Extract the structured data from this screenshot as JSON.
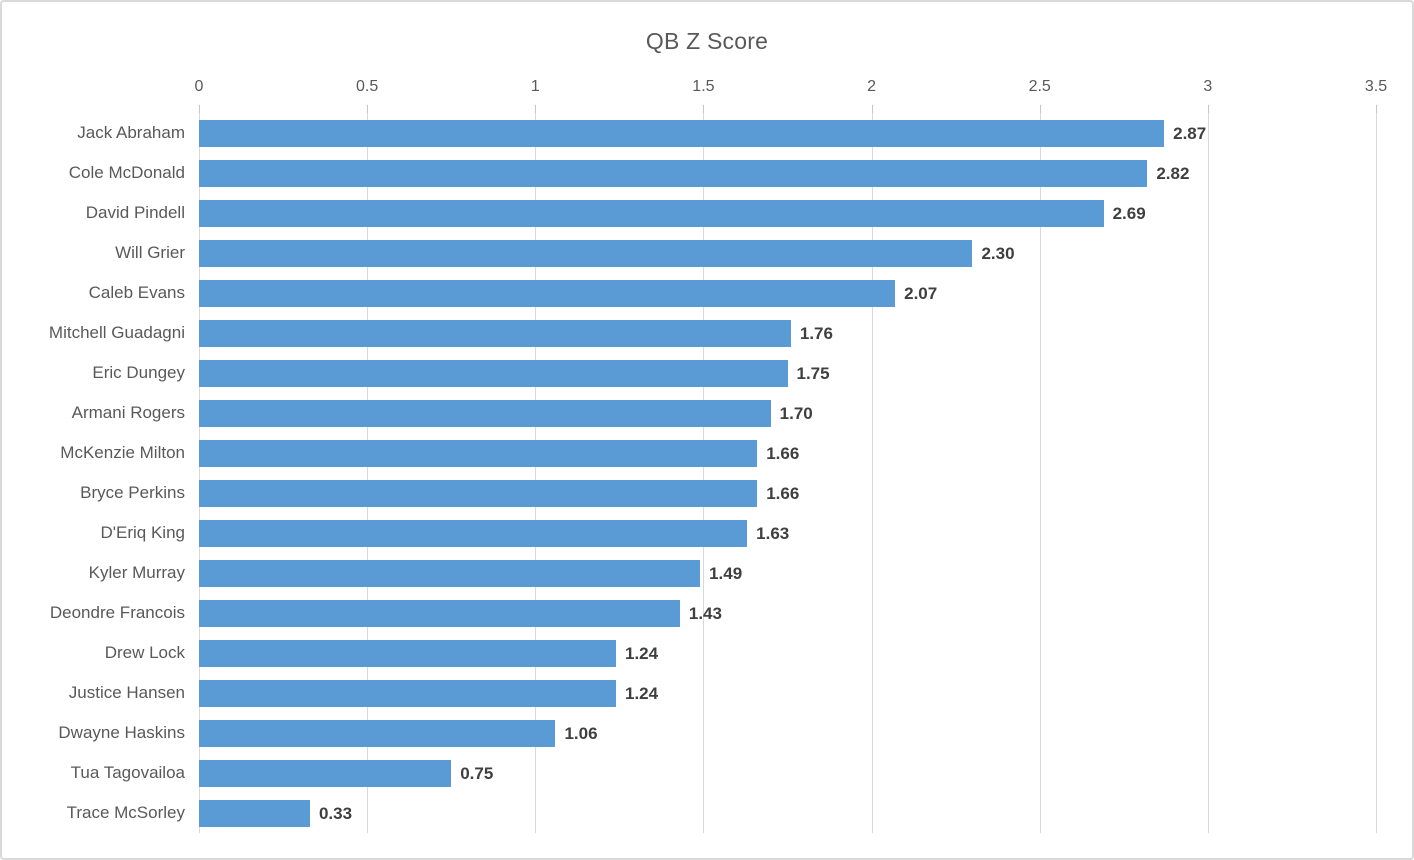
{
  "chart_data": {
    "type": "bar",
    "orientation": "horizontal",
    "title": "QB Z Score",
    "categories": [
      "Jack Abraham",
      "Cole McDonald",
      "David Pindell",
      "Will Grier",
      "Caleb Evans",
      "Mitchell Guadagni",
      "Eric Dungey",
      "Armani Rogers",
      "McKenzie Milton",
      "Bryce Perkins",
      "D'Eriq King",
      "Kyler Murray",
      "Deondre Francois",
      "Drew Lock",
      "Justice Hansen",
      "Dwayne Haskins",
      "Tua Tagovailoa",
      "Trace McSorley"
    ],
    "values": [
      2.87,
      2.82,
      2.69,
      2.3,
      2.07,
      1.76,
      1.75,
      1.7,
      1.66,
      1.66,
      1.63,
      1.49,
      1.43,
      1.24,
      1.24,
      1.06,
      0.75,
      0.33
    ],
    "value_labels": [
      "2.87",
      "2.82",
      "2.69",
      "2.30",
      "2.07",
      "1.76",
      "1.75",
      "1.70",
      "1.66",
      "1.66",
      "1.63",
      "1.49",
      "1.43",
      "1.24",
      "1.24",
      "1.06",
      "0.75",
      "0.33"
    ],
    "xlim": [
      0,
      3.5
    ],
    "x_ticks": [
      0,
      0.5,
      1,
      1.5,
      2,
      2.5,
      3,
      3.5
    ],
    "x_tick_labels": [
      "0",
      "0.5",
      "1",
      "1.5",
      "2",
      "2.5",
      "3",
      "3.5"
    ],
    "axis_position": "top",
    "grid": true,
    "legend": "none",
    "data_labels": "outside-end",
    "colors": {
      "bar": "#5B9BD5",
      "gridline": "#D9D9D9",
      "tick_mark": "#C6C6C6",
      "title_text": "#595959",
      "axis_text": "#595959",
      "category_text": "#595959",
      "data_label_text": "#3F3F3F",
      "border": "#D9D9D9",
      "background": "#FFFFFF"
    }
  }
}
